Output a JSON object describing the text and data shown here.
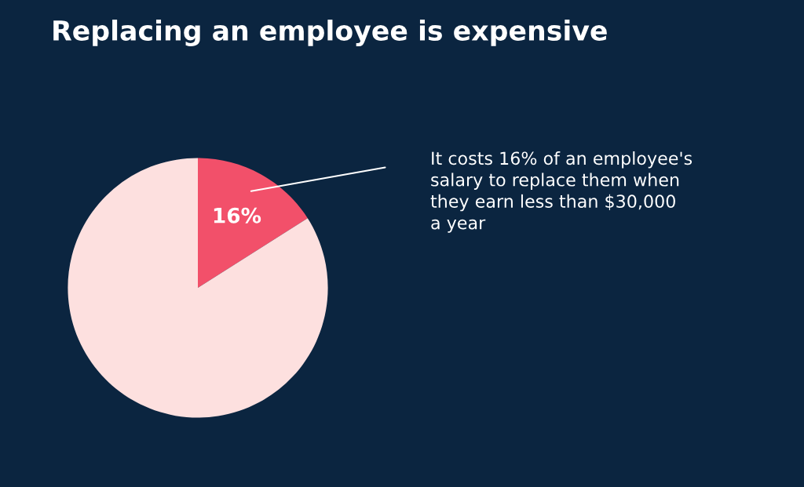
{
  "chart_data": {
    "type": "pie",
    "title": "Replacing an employee is expensive",
    "categories": [
      null,
      null
    ],
    "values": [
      16,
      84
    ],
    "colors": [
      "#f2506a",
      "#fde0df"
    ],
    "value_labels": [
      "16%",
      null
    ],
    "annotations": [
      {
        "text": "It costs 16% of an employee's\nsalary to replace them when\nthey earn less than $30,000\na year"
      }
    ],
    "legend": false
  }
}
